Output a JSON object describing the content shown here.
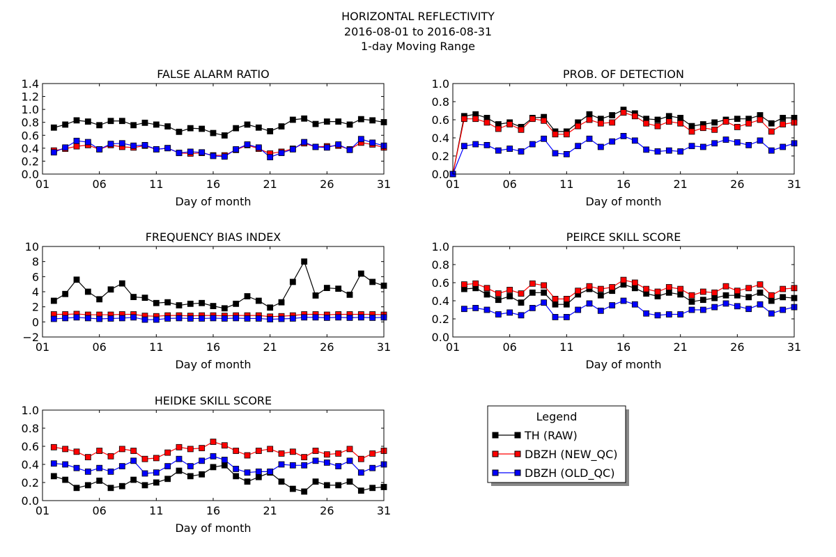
{
  "figure": {
    "title_lines": [
      "HORIZONTAL REFLECTIVITY",
      "2016-08-01 to 2016-08-31",
      "1-day Moving Range"
    ]
  },
  "legend": {
    "title": "Legend",
    "entries": [
      {
        "label": "TH (RAW)",
        "color": "#000000"
      },
      {
        "label": "DBZH (NEW_QC)",
        "color": "#ff0000"
      },
      {
        "label": "DBZH (OLD_QC)",
        "color": "#0000ff"
      }
    ]
  },
  "chart_data": [
    {
      "type": "line",
      "title": "FALSE ALARM RATIO",
      "xlabel": "Day of month",
      "ylabel": "",
      "xlim": [
        1,
        31
      ],
      "ylim": [
        0,
        1.5
      ],
      "xticks": [
        "01",
        "06",
        "11",
        "16",
        "21",
        "26",
        "31"
      ],
      "yticks": [
        "0.0",
        "0.2",
        "0.4",
        "0.6",
        "0.8",
        "1.0",
        "1.2",
        "1.4"
      ],
      "x": [
        2,
        3,
        4,
        5,
        6,
        7,
        8,
        9,
        10,
        11,
        12,
        13,
        14,
        15,
        16,
        17,
        18,
        19,
        20,
        21,
        22,
        23,
        24,
        25,
        26,
        27,
        28,
        29,
        30,
        31
      ],
      "series": [
        {
          "color": "#000000",
          "values": [
            0.77,
            0.82,
            0.89,
            0.87,
            0.81,
            0.88,
            0.88,
            0.81,
            0.85,
            0.82,
            0.79,
            0.7,
            0.76,
            0.75,
            0.68,
            0.64,
            0.76,
            0.82,
            0.77,
            0.71,
            0.79,
            0.9,
            0.92,
            0.83,
            0.87,
            0.87,
            0.82,
            0.91,
            0.89,
            0.86
          ]
        },
        {
          "color": "#ff0000",
          "values": [
            0.39,
            0.42,
            0.46,
            0.48,
            0.41,
            0.48,
            0.45,
            0.44,
            0.47,
            0.41,
            0.43,
            0.35,
            0.34,
            0.35,
            0.31,
            0.31,
            0.4,
            0.48,
            0.42,
            0.34,
            0.37,
            0.42,
            0.51,
            0.45,
            0.46,
            0.47,
            0.41,
            0.52,
            0.49,
            0.44
          ]
        },
        {
          "color": "#0000ff",
          "values": [
            0.36,
            0.44,
            0.55,
            0.53,
            0.41,
            0.5,
            0.51,
            0.47,
            0.48,
            0.41,
            0.43,
            0.35,
            0.37,
            0.36,
            0.3,
            0.29,
            0.41,
            0.49,
            0.44,
            0.28,
            0.35,
            0.41,
            0.53,
            0.45,
            0.44,
            0.49,
            0.4,
            0.58,
            0.52,
            0.47
          ]
        }
      ]
    },
    {
      "type": "line",
      "title": "PROB. OF DETECTION",
      "xlabel": "Day of month",
      "ylabel": "",
      "xlim": [
        1,
        31
      ],
      "ylim": [
        0,
        1.0
      ],
      "xticks": [
        "01",
        "06",
        "11",
        "16",
        "21",
        "26",
        "31"
      ],
      "yticks": [
        "0.0",
        "0.2",
        "0.4",
        "0.6",
        "0.8",
        "1.0"
      ],
      "x": [
        1,
        2,
        3,
        4,
        5,
        6,
        7,
        8,
        9,
        10,
        11,
        12,
        13,
        14,
        15,
        16,
        17,
        18,
        19,
        20,
        21,
        22,
        23,
        24,
        25,
        26,
        27,
        28,
        29,
        30,
        31
      ],
      "series": [
        {
          "color": "#000000",
          "values": [
            0.0,
            0.64,
            0.66,
            0.62,
            0.55,
            0.57,
            0.52,
            0.62,
            0.63,
            0.47,
            0.47,
            0.57,
            0.66,
            0.61,
            0.65,
            0.71,
            0.67,
            0.61,
            0.6,
            0.64,
            0.62,
            0.53,
            0.55,
            0.57,
            0.6,
            0.61,
            0.61,
            0.65,
            0.56,
            0.62,
            0.62
          ]
        },
        {
          "color": "#ff0000",
          "values": [
            0.0,
            0.61,
            0.61,
            0.57,
            0.5,
            0.55,
            0.49,
            0.61,
            0.59,
            0.44,
            0.44,
            0.53,
            0.6,
            0.56,
            0.57,
            0.68,
            0.64,
            0.56,
            0.53,
            0.58,
            0.56,
            0.47,
            0.51,
            0.49,
            0.58,
            0.52,
            0.56,
            0.6,
            0.47,
            0.55,
            0.57
          ]
        },
        {
          "color": "#0000ff",
          "values": [
            0.0,
            0.31,
            0.33,
            0.32,
            0.26,
            0.28,
            0.25,
            0.33,
            0.39,
            0.23,
            0.22,
            0.31,
            0.39,
            0.3,
            0.36,
            0.42,
            0.37,
            0.27,
            0.25,
            0.26,
            0.25,
            0.31,
            0.3,
            0.34,
            0.38,
            0.35,
            0.32,
            0.37,
            0.26,
            0.3,
            0.34
          ]
        }
      ]
    },
    {
      "type": "line",
      "title": "FREQUENCY BIAS INDEX",
      "xlabel": "Day of month",
      "ylabel": "",
      "xlim": [
        1,
        31
      ],
      "ylim": [
        -2,
        10
      ],
      "xticks": [
        "01",
        "06",
        "11",
        "16",
        "21",
        "26",
        "31"
      ],
      "yticks": [
        "−2",
        "0",
        "2",
        "4",
        "6",
        "8",
        "10"
      ],
      "x": [
        2,
        3,
        4,
        5,
        6,
        7,
        8,
        9,
        10,
        11,
        12,
        13,
        14,
        15,
        16,
        17,
        18,
        19,
        20,
        21,
        22,
        23,
        24,
        25,
        26,
        27,
        28,
        29,
        30,
        31
      ],
      "series": [
        {
          "color": "#000000",
          "values": [
            2.8,
            3.7,
            5.6,
            4.0,
            3.0,
            4.3,
            5.1,
            3.3,
            3.2,
            2.5,
            2.6,
            2.2,
            2.4,
            2.5,
            2.1,
            1.8,
            2.4,
            3.4,
            2.8,
            1.9,
            2.6,
            5.3,
            8.0,
            3.5,
            4.5,
            4.4,
            3.6,
            6.4,
            5.3,
            4.8
          ]
        },
        {
          "color": "#ff0000",
          "values": [
            1.0,
            1.0,
            1.05,
            0.95,
            0.95,
            0.95,
            1.0,
            1.0,
            0.8,
            0.75,
            0.85,
            0.85,
            0.8,
            0.85,
            0.85,
            0.8,
            0.85,
            0.85,
            0.85,
            0.7,
            0.75,
            0.85,
            1.0,
            1.0,
            0.95,
            1.0,
            1.0,
            1.0,
            1.0,
            0.95
          ]
        },
        {
          "color": "#0000ff",
          "values": [
            0.4,
            0.5,
            0.6,
            0.5,
            0.4,
            0.45,
            0.5,
            0.6,
            0.3,
            0.3,
            0.45,
            0.5,
            0.45,
            0.45,
            0.5,
            0.45,
            0.5,
            0.45,
            0.45,
            0.35,
            0.4,
            0.45,
            0.6,
            0.6,
            0.55,
            0.6,
            0.55,
            0.6,
            0.55,
            0.6
          ]
        }
      ]
    },
    {
      "type": "line",
      "title": "PEIRCE SKILL SCORE",
      "xlabel": "Day of month",
      "ylabel": "",
      "xlim": [
        1,
        31
      ],
      "ylim": [
        0,
        1.0
      ],
      "xticks": [
        "01",
        "06",
        "11",
        "16",
        "21",
        "26",
        "31"
      ],
      "yticks": [
        "0.0",
        "0.2",
        "0.4",
        "0.6",
        "0.8",
        "1.0"
      ],
      "x": [
        2,
        3,
        4,
        5,
        6,
        7,
        8,
        9,
        10,
        11,
        12,
        13,
        14,
        15,
        16,
        17,
        18,
        19,
        20,
        21,
        22,
        23,
        24,
        25,
        26,
        27,
        28,
        29,
        30,
        31
      ],
      "series": [
        {
          "color": "#000000",
          "values": [
            0.53,
            0.54,
            0.47,
            0.41,
            0.45,
            0.38,
            0.49,
            0.49,
            0.36,
            0.36,
            0.47,
            0.53,
            0.46,
            0.51,
            0.58,
            0.54,
            0.48,
            0.45,
            0.49,
            0.47,
            0.39,
            0.41,
            0.43,
            0.46,
            0.46,
            0.44,
            0.49,
            0.4,
            0.44,
            0.43
          ]
        },
        {
          "color": "#ff0000",
          "values": [
            0.58,
            0.59,
            0.54,
            0.48,
            0.52,
            0.48,
            0.59,
            0.57,
            0.42,
            0.42,
            0.51,
            0.56,
            0.53,
            0.55,
            0.63,
            0.6,
            0.53,
            0.5,
            0.55,
            0.53,
            0.46,
            0.5,
            0.49,
            0.56,
            0.51,
            0.54,
            0.58,
            0.46,
            0.53,
            0.54
          ]
        },
        {
          "color": "#0000ff",
          "values": [
            0.31,
            0.32,
            0.3,
            0.25,
            0.27,
            0.24,
            0.32,
            0.38,
            0.22,
            0.22,
            0.3,
            0.37,
            0.29,
            0.35,
            0.4,
            0.36,
            0.26,
            0.24,
            0.25,
            0.25,
            0.3,
            0.3,
            0.33,
            0.37,
            0.34,
            0.31,
            0.36,
            0.26,
            0.3,
            0.33
          ]
        }
      ]
    },
    {
      "type": "line",
      "title": "HEIDKE SKILL SCORE",
      "xlabel": "Day of month",
      "ylabel": "",
      "xlim": [
        1,
        31
      ],
      "ylim": [
        0,
        1.0
      ],
      "xticks": [
        "01",
        "06",
        "11",
        "16",
        "21",
        "26",
        "31"
      ],
      "yticks": [
        "0.0",
        "0.2",
        "0.4",
        "0.6",
        "0.8",
        "1.0"
      ],
      "x": [
        2,
        3,
        4,
        5,
        6,
        7,
        8,
        9,
        10,
        11,
        12,
        13,
        14,
        15,
        16,
        17,
        18,
        19,
        20,
        21,
        22,
        23,
        24,
        25,
        26,
        27,
        28,
        29,
        30,
        31
      ],
      "series": [
        {
          "color": "#000000",
          "values": [
            0.27,
            0.23,
            0.14,
            0.17,
            0.22,
            0.14,
            0.16,
            0.23,
            0.17,
            0.2,
            0.24,
            0.33,
            0.27,
            0.29,
            0.37,
            0.39,
            0.27,
            0.21,
            0.26,
            0.31,
            0.21,
            0.13,
            0.1,
            0.21,
            0.17,
            0.17,
            0.21,
            0.11,
            0.14,
            0.15
          ]
        },
        {
          "color": "#ff0000",
          "values": [
            0.59,
            0.57,
            0.54,
            0.48,
            0.55,
            0.49,
            0.57,
            0.55,
            0.46,
            0.47,
            0.53,
            0.59,
            0.57,
            0.58,
            0.65,
            0.61,
            0.55,
            0.5,
            0.55,
            0.57,
            0.52,
            0.54,
            0.48,
            0.55,
            0.51,
            0.52,
            0.57,
            0.46,
            0.52,
            0.55
          ]
        },
        {
          "color": "#0000ff",
          "values": [
            0.41,
            0.4,
            0.36,
            0.32,
            0.36,
            0.32,
            0.38,
            0.44,
            0.3,
            0.31,
            0.38,
            0.46,
            0.38,
            0.44,
            0.49,
            0.45,
            0.35,
            0.31,
            0.32,
            0.32,
            0.4,
            0.39,
            0.39,
            0.44,
            0.42,
            0.38,
            0.44,
            0.31,
            0.36,
            0.4
          ]
        }
      ]
    }
  ]
}
